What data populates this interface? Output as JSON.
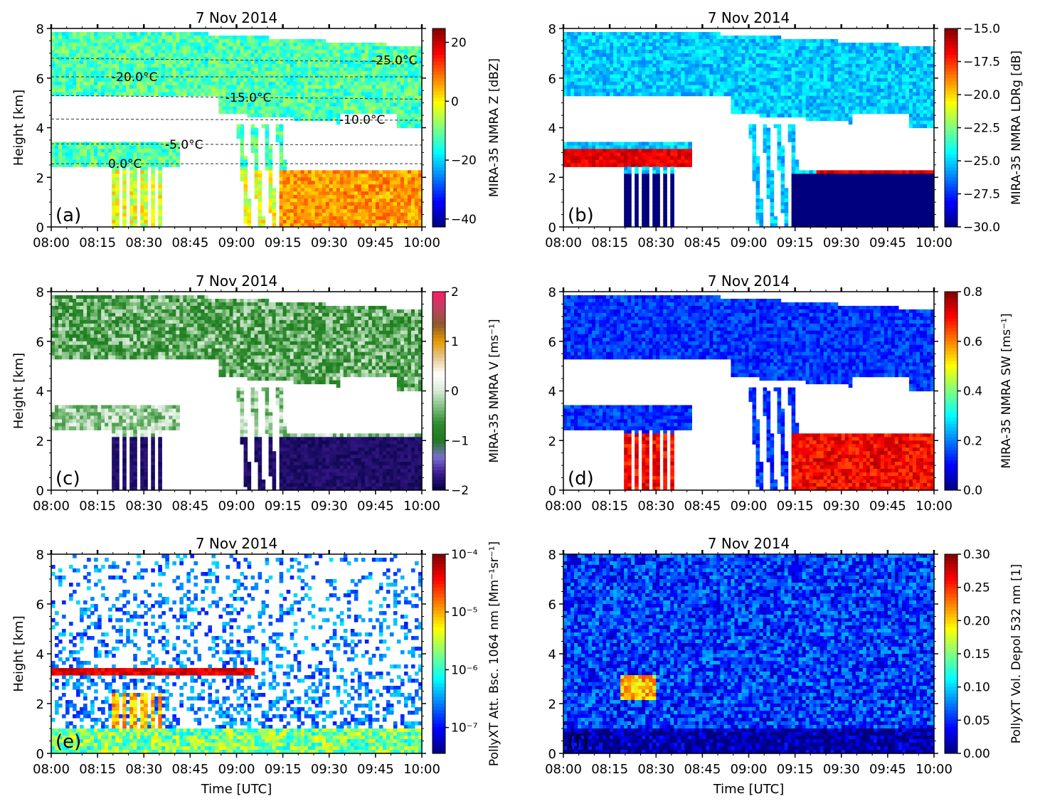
{
  "figure": {
    "background": "#ffffff",
    "colormaps": {
      "jet": [
        "#00007f",
        "#0000ff",
        "#007fff",
        "#00ffff",
        "#7fff7f",
        "#ffff00",
        "#ff7f00",
        "#ff0000",
        "#7f0000"
      ],
      "velocity": [
        "#000040",
        "#3b1a8c",
        "#7a6fd0",
        "#1e7a1e",
        "#2e8b2e",
        "#7fbf7f",
        "#d9ead9",
        "#ffffff",
        "#e6c890",
        "#e39a00",
        "#8c5a2e",
        "#c04060",
        "#ff1a66"
      ]
    }
  },
  "chart_data": [
    {
      "id": "a",
      "type": "heatmap",
      "title": "7 Nov 2014",
      "panel_label": "(a)",
      "xlabel": "",
      "ylabel": "Height [km]",
      "x_ticks": [
        "08:00",
        "08:15",
        "08:30",
        "08:45",
        "09:00",
        "09:15",
        "09:30",
        "09:45",
        "10:00"
      ],
      "y_ticks": [
        "0",
        "2",
        "4",
        "6",
        "8"
      ],
      "xlim": [
        "08:00",
        "10:00"
      ],
      "ylim": [
        0,
        8
      ],
      "colormap": "jet",
      "colorbar": {
        "label": "MIRA-35 NMRA Z [dBZ]",
        "ticks": [
          "20",
          "0",
          "−20",
          "−40"
        ],
        "range": [
          -50,
          25
        ],
        "scale": "linear"
      },
      "isotherms": [
        {
          "label": "-25.0°C",
          "height_km": [
            6.8,
            6.65
          ]
        },
        {
          "label": "-20.0°C",
          "height_km": [
            6.05,
            6.05
          ]
        },
        {
          "label": "-15.0°C",
          "height_km": [
            5.3,
            5.15
          ]
        },
        {
          "label": "-10.0°C",
          "height_km": [
            4.35,
            4.3
          ]
        },
        {
          "label": "-5.0°C",
          "height_km": [
            3.35,
            3.3
          ]
        },
        {
          "label": "0.0°C",
          "height_km": [
            2.55,
            2.55
          ]
        }
      ]
    },
    {
      "id": "b",
      "type": "heatmap",
      "title": "7 Nov 2014",
      "panel_label": "(b)",
      "xlabel": "",
      "ylabel": "",
      "x_ticks": [
        "08:00",
        "08:15",
        "08:30",
        "08:45",
        "09:00",
        "09:15",
        "09:30",
        "09:45",
        "10:00"
      ],
      "y_ticks": [
        "0",
        "2",
        "4",
        "6",
        "8"
      ],
      "xlim": [
        "08:00",
        "10:00"
      ],
      "ylim": [
        0,
        8
      ],
      "colormap": "jet",
      "colorbar": {
        "label": "MIRA-35 NMRA LDRg [dB]",
        "ticks": [
          "−15.0",
          "−17.5",
          "−20.0",
          "−22.5",
          "−25.0",
          "−27.5",
          "−30.0"
        ],
        "range": [
          -30,
          -15
        ],
        "scale": "linear"
      }
    },
    {
      "id": "c",
      "type": "heatmap",
      "title": "7 Nov 2014",
      "panel_label": "(c)",
      "xlabel": "",
      "ylabel": "Height [km]",
      "x_ticks": [
        "08:00",
        "08:15",
        "08:30",
        "08:45",
        "09:00",
        "09:15",
        "09:30",
        "09:45",
        "10:00"
      ],
      "y_ticks": [
        "0",
        "2",
        "4",
        "6",
        "8"
      ],
      "xlim": [
        "08:00",
        "10:00"
      ],
      "ylim": [
        0,
        8
      ],
      "colormap": "velocity",
      "colorbar": {
        "label": "MIRA-35 NMRA V [ms⁻¹]",
        "ticks": [
          "2",
          "1",
          "0",
          "−1",
          "−2"
        ],
        "range": [
          -2,
          2
        ],
        "scale": "linear"
      }
    },
    {
      "id": "d",
      "type": "heatmap",
      "title": "7 Nov 2014",
      "panel_label": "(d)",
      "xlabel": "",
      "ylabel": "",
      "x_ticks": [
        "08:00",
        "08:15",
        "08:30",
        "08:45",
        "09:00",
        "09:15",
        "09:30",
        "09:45",
        "10:00"
      ],
      "y_ticks": [
        "0",
        "2",
        "4",
        "6",
        "8"
      ],
      "xlim": [
        "08:00",
        "10:00"
      ],
      "ylim": [
        0,
        8
      ],
      "colormap": "jet",
      "colorbar": {
        "label": "MIRA-35 NMRA SW  [ms⁻¹]",
        "ticks": [
          "0.8",
          "0.6",
          "0.4",
          "0.2",
          "0.0"
        ],
        "range": [
          0,
          0.8
        ],
        "scale": "linear"
      }
    },
    {
      "id": "e",
      "type": "heatmap",
      "title": "7 Nov 2014",
      "panel_label": "(e)",
      "xlabel": "Time [UTC]",
      "ylabel": "Height [km]",
      "x_ticks": [
        "08:00",
        "08:15",
        "08:30",
        "08:45",
        "09:00",
        "09:15",
        "09:30",
        "09:45",
        "10:00"
      ],
      "y_ticks": [
        "0",
        "2",
        "4",
        "6",
        "8"
      ],
      "xlim": [
        "08:00",
        "10:00"
      ],
      "ylim": [
        0,
        8
      ],
      "colormap": "jet",
      "colorbar": {
        "label": "PollyXT Att. Bsc. 1064 nm [Mm⁻¹sr⁻¹]",
        "ticks": [
          "10⁻⁴",
          "10⁻⁵",
          "10⁻⁶",
          "10⁻⁷"
        ],
        "range": [
          "3e-8",
          "1e-4"
        ],
        "scale": "log"
      }
    },
    {
      "id": "f",
      "type": "heatmap",
      "title": "7 Nov 2014",
      "panel_label": "(f)",
      "xlabel": "Time [UTC]",
      "ylabel": "",
      "x_ticks": [
        "08:00",
        "08:15",
        "08:30",
        "08:45",
        "09:00",
        "09:15",
        "09:30",
        "09:45",
        "10:00"
      ],
      "y_ticks": [
        "0",
        "2",
        "4",
        "6",
        "8"
      ],
      "xlim": [
        "08:00",
        "10:00"
      ],
      "ylim": [
        0,
        8
      ],
      "colormap": "jet",
      "colorbar": {
        "label": "PollyXT Vol. Depol 532 nm [1]",
        "ticks": [
          "0.30",
          "0.25",
          "0.20",
          "0.15",
          "0.10",
          "0.05",
          "0.00"
        ],
        "range": [
          0,
          0.3
        ],
        "scale": "linear"
      }
    }
  ]
}
